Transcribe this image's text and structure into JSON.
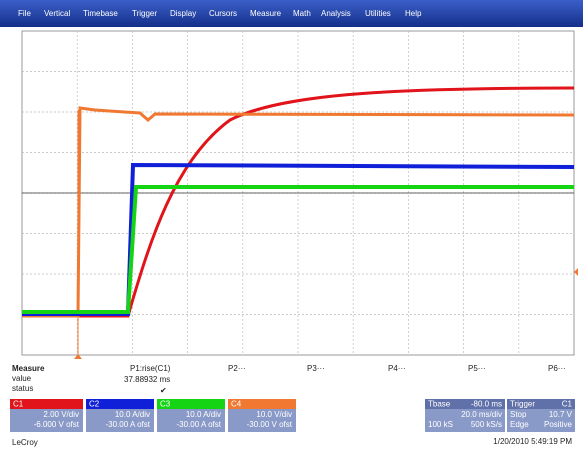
{
  "menu": [
    "File",
    "Vertical",
    "Timebase",
    "Trigger",
    "Display",
    "Cursors",
    "Measure",
    "Math",
    "Analysis",
    "Utilities",
    "Help"
  ],
  "measure": {
    "title": "Measure",
    "row_labels": [
      "value",
      "status"
    ],
    "params": [
      "P1:rise(C1)",
      "P2···",
      "P3···",
      "P4···",
      "P5···",
      "P6···"
    ],
    "value": "37.88932 ms",
    "status": "✔"
  },
  "channels": [
    {
      "name": "C1",
      "scale": "2.00 V/div",
      "offset": "-6.000 V ofst"
    },
    {
      "name": "C2",
      "scale": "10.0 A/div",
      "offset": "-30.00 A ofst"
    },
    {
      "name": "C3",
      "scale": "10.0 A/div",
      "offset": "-30.00 A ofst"
    },
    {
      "name": "C4",
      "scale": "10.0 V/div",
      "offset": "-30.00 V ofst"
    }
  ],
  "timebase": {
    "label": "Tbase",
    "delay": "-80.0 ms",
    "scale": "20.0 ms/div",
    "samples": "100 kS",
    "rate": "500 kS/s"
  },
  "trigger": {
    "label": "Trigger",
    "source": "C1",
    "mode": "Stop",
    "level": "10.7 V",
    "type": "Edge",
    "slope": "Positive"
  },
  "timestamp": "1/20/2010 5:49:19 PM",
  "brand": "LeCroy"
}
